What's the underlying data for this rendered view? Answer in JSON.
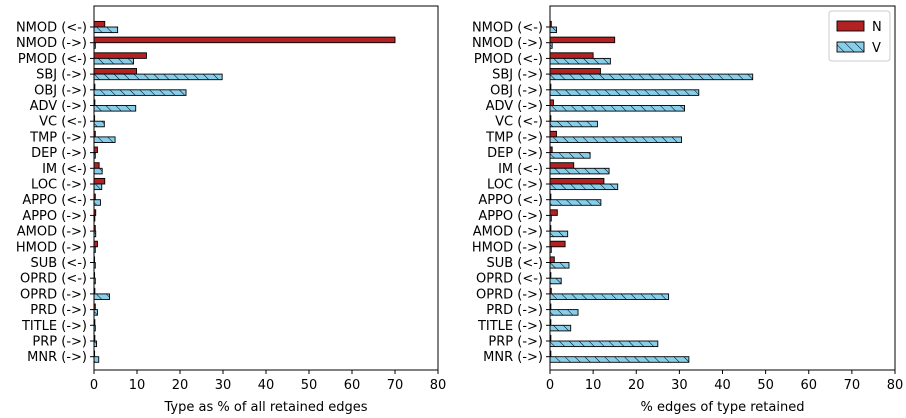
{
  "chart_data": [
    {
      "type": "bar",
      "orientation": "horizontal",
      "categories": [
        "NMOD (<-)",
        "NMOD (->)",
        "PMOD (<-)",
        "SBJ (->)",
        "OBJ (->)",
        "ADV (->)",
        "VC (<-)",
        "TMP (->)",
        "DEP (->)",
        "IM (<-)",
        "LOC (->)",
        "APPO (<-)",
        "APPO (->)",
        "AMOD (->)",
        "HMOD (->)",
        "SUB (<-)",
        "OPRD (<-)",
        "OPRD (->)",
        "PRD (->)",
        "TITLE (->)",
        "PRP (->)",
        "MNR (->)"
      ],
      "series": [
        {
          "name": "N",
          "color": "#b22222",
          "hatch": false,
          "values": [
            2.5,
            70,
            12.2,
            9.9,
            0.2,
            0.2,
            0.1,
            0.3,
            0.8,
            1.2,
            2.5,
            0.3,
            0.4,
            0.3,
            0.8,
            0.1,
            0.1,
            0.2,
            0.3,
            0.2,
            0.2,
            0.1
          ]
        },
        {
          "name": "V",
          "color": "#87ceeb",
          "hatch": true,
          "values": [
            5.5,
            0.3,
            9.2,
            29.8,
            21.4,
            9.7,
            2.4,
            4.9,
            0.3,
            1.9,
            1.8,
            1.5,
            0.2,
            0.4,
            0.3,
            0.3,
            0.3,
            3.6,
            0.8,
            0.3,
            0.6,
            1.1
          ]
        }
      ],
      "xlabel": "Type as % of all retained edges",
      "ylabel": "",
      "xlim": [
        0,
        80
      ],
      "xticks": [
        0,
        10,
        20,
        30,
        40,
        50,
        60,
        70,
        80
      ],
      "grid": false,
      "legend": null
    },
    {
      "type": "bar",
      "orientation": "horizontal",
      "categories": [
        "NMOD (<-)",
        "NMOD (->)",
        "PMOD (<-)",
        "SBJ (->)",
        "OBJ (->)",
        "ADV (->)",
        "VC (<-)",
        "TMP (->)",
        "DEP (->)",
        "IM (<-)",
        "LOC (->)",
        "APPO (<-)",
        "APPO (->)",
        "AMOD (->)",
        "HMOD (->)",
        "SUB (<-)",
        "OPRD (<-)",
        "OPRD (->)",
        "PRD (->)",
        "TITLE (->)",
        "PRP (->)",
        "MNR (->)"
      ],
      "series": [
        {
          "name": "N",
          "color": "#b22222",
          "hatch": false,
          "values": [
            0.3,
            15,
            10,
            11.7,
            0.2,
            0.8,
            0.2,
            1.5,
            0.5,
            5.5,
            12.5,
            0.2,
            1.7,
            0.2,
            3.5,
            1.0,
            0.2,
            0.3,
            0.2,
            0.2,
            0.2,
            0.2
          ]
        },
        {
          "name": "V",
          "color": "#87ceeb",
          "hatch": true,
          "values": [
            1.5,
            0.5,
            14,
            47,
            34.5,
            31.2,
            11,
            30.5,
            9.3,
            13.7,
            15.7,
            11.8,
            0.3,
            4.1,
            0.3,
            4.4,
            2.6,
            27.5,
            6.5,
            4.8,
            25,
            32.2
          ]
        }
      ],
      "xlabel": "% edges of type retained",
      "ylabel": "",
      "xlim": [
        0,
        80
      ],
      "xticks": [
        0,
        10,
        20,
        30,
        40,
        50,
        60,
        70,
        80
      ],
      "grid": false,
      "legend": {
        "position": "top-right",
        "entries": [
          "N",
          "V"
        ]
      }
    }
  ]
}
